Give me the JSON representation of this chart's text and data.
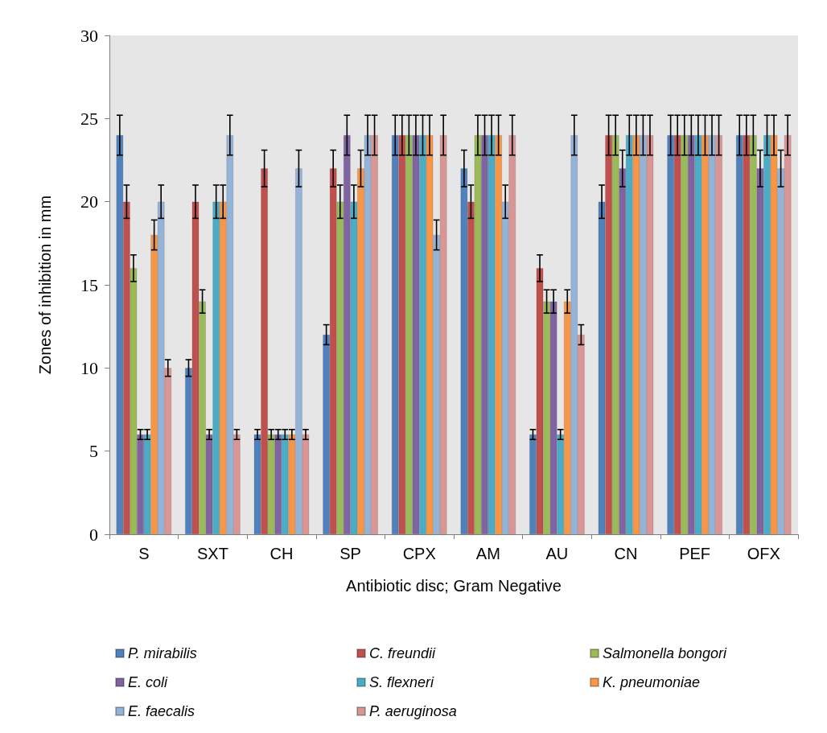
{
  "chart_data": {
    "type": "bar",
    "xlabel": "Antibiotic disc; Gram Negative",
    "ylabel": "Zones of inhibition in mm",
    "categories": [
      "S",
      "SXT",
      "CH",
      "SP",
      "CPX",
      "AM",
      "AU",
      "CN",
      "PEF",
      "OFX"
    ],
    "series": [
      {
        "name": "P. mirabilis",
        "color": "#4f81bd",
        "values": [
          24,
          10,
          6,
          12,
          24,
          22,
          6,
          20,
          24,
          24
        ],
        "errors": [
          1.2,
          0.5,
          0.3,
          0.6,
          1.2,
          1.1,
          0.3,
          1,
          1.2,
          1.2
        ]
      },
      {
        "name": "C. freundii",
        "color": "#c0504d",
        "values": [
          20,
          20,
          22,
          22,
          24,
          20,
          16,
          24,
          24,
          24
        ],
        "errors": [
          1,
          1,
          1.1,
          1.1,
          1.2,
          1,
          0.8,
          1.2,
          1.2,
          1.2
        ]
      },
      {
        "name": "Salmonella bongori",
        "color": "#9bbb59",
        "values": [
          16,
          14,
          6,
          20,
          24,
          24,
          14,
          24,
          24,
          24
        ],
        "errors": [
          0.8,
          0.7,
          0.3,
          1,
          1.2,
          1.2,
          0.7,
          1.2,
          1.2,
          1.2
        ]
      },
      {
        "name": "E. coli",
        "color": "#8064a2",
        "values": [
          6,
          6,
          6,
          24,
          24,
          24,
          14,
          22,
          24,
          22
        ],
        "errors": [
          0.3,
          0.3,
          0.3,
          1.2,
          1.2,
          1.2,
          0.7,
          1.1,
          1.2,
          1.1
        ]
      },
      {
        "name": "S. flexneri",
        "color": "#4bacc6",
        "values": [
          6,
          20,
          6,
          20,
          24,
          24,
          6,
          24,
          24,
          24
        ],
        "errors": [
          0.3,
          1,
          0.3,
          1,
          1.2,
          1.2,
          0.3,
          1.2,
          1.2,
          1.2
        ]
      },
      {
        "name": "K. pneumoniae",
        "color": "#f79646",
        "values": [
          18,
          20,
          6,
          22,
          24,
          24,
          14,
          24,
          24,
          24
        ],
        "errors": [
          0.9,
          1,
          0.3,
          1.1,
          1.2,
          1.2,
          0.7,
          1.2,
          1.2,
          1.2
        ]
      },
      {
        "name": "E. faecalis",
        "color": "#95b3d7",
        "values": [
          20,
          24,
          22,
          24,
          18,
          20,
          24,
          24,
          24,
          22
        ],
        "errors": [
          1,
          1.2,
          1.1,
          1.2,
          0.9,
          1,
          1.2,
          1.2,
          1.2,
          1.1
        ]
      },
      {
        "name": "P. aeruginosa",
        "color": "#d99694",
        "values": [
          10,
          6,
          6,
          24,
          24,
          24,
          12,
          24,
          24,
          24
        ],
        "errors": [
          0.5,
          0.3,
          0.3,
          1.2,
          1.2,
          1.2,
          0.6,
          1.2,
          1.2,
          1.2
        ]
      }
    ],
    "ylim": [
      0,
      30
    ],
    "yticks": [
      0,
      5,
      10,
      15,
      20,
      25,
      30
    ],
    "grid": false,
    "legend": "bottom"
  }
}
